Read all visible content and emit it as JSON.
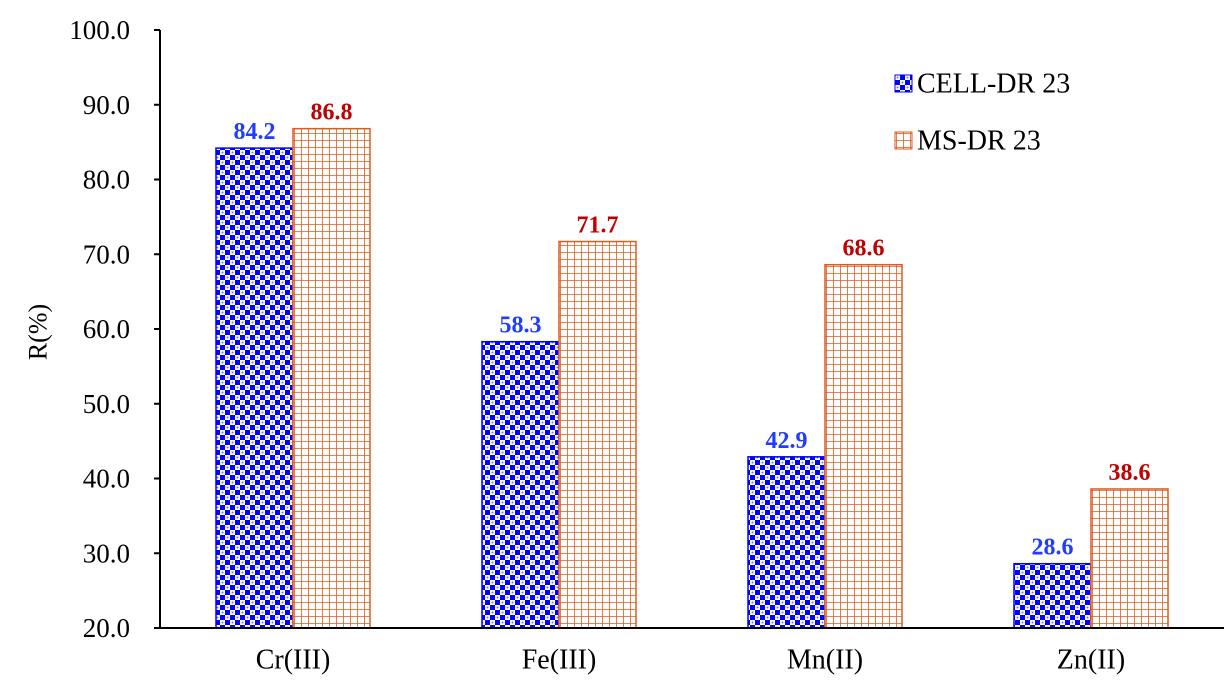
{
  "chart_data": {
    "type": "bar",
    "title": "",
    "xlabel": "",
    "ylabel": "R(%)",
    "ylim": [
      20,
      100
    ],
    "ytick_step": 10,
    "ytick_labels": [
      "20.0",
      "30.0",
      "40.0",
      "50.0",
      "60.0",
      "70.0",
      "80.0",
      "90.0",
      "100.0"
    ],
    "grid": false,
    "legend_position": "top-right",
    "categories": [
      "Cr(III)",
      "Fe(III)",
      "Mn(II)",
      "Zn(II)"
    ],
    "series": [
      {
        "name": "CELL-DR 23",
        "values": [
          84.2,
          58.3,
          42.9,
          28.6
        ],
        "value_labels": [
          "84.2",
          "58.3",
          "42.9",
          "28.6"
        ],
        "color": "#0000ff",
        "label_color": "#1f3dff",
        "pattern": "checker"
      },
      {
        "name": "MS-DR 23",
        "values": [
          86.8,
          71.7,
          68.6,
          38.6
        ],
        "value_labels": [
          "86.8",
          "71.7",
          "68.6",
          "38.6"
        ],
        "color": "#e05a1e",
        "label_color": "#c00000",
        "pattern": "grid"
      }
    ]
  }
}
